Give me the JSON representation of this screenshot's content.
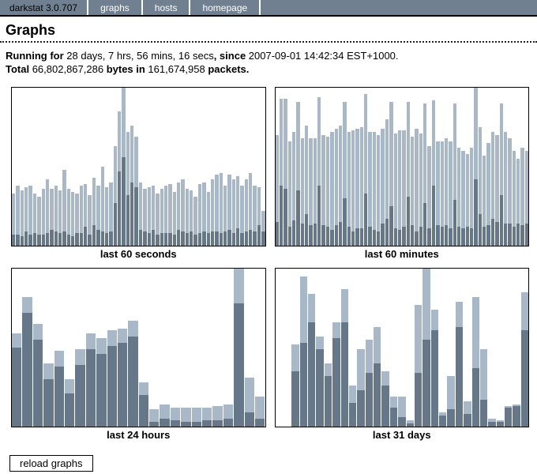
{
  "nav": {
    "items": [
      {
        "label": "darkstat 3.0.707"
      },
      {
        "label": "graphs"
      },
      {
        "label": "hosts"
      },
      {
        "label": "homepage"
      }
    ]
  },
  "page_title": "Graphs",
  "stats": {
    "running_label": "Running for",
    "uptime": " 28 days, 7 hrs, 56 mins, 16 secs",
    "since_label": ", since",
    "since_value": " 2007-09-01 14:42:34 EST+1000.",
    "total_label": "Total",
    "bytes_value": " 66,802,867,286 ",
    "bytes_label": "bytes in",
    "packets_value": " 161,674,958 ",
    "packets_label": "packets."
  },
  "colors": {
    "nav_background": "#708090",
    "bar_in_dark": "#66778a",
    "bar_out_light": "#a9b8c8",
    "graph_border": "#000000"
  },
  "footer": {
    "reload_button_label": "reload graphs"
  },
  "chart_data": [
    {
      "type": "bar",
      "stacked": true,
      "title": "last 60 seconds",
      "bins": 60,
      "ylim_pct": [
        0,
        100
      ],
      "note": "no axis labels shown; values are percent of graph height, dark=in bottom, light=out top",
      "series": [
        {
          "name": "in",
          "values": [
            7,
            7,
            6,
            9,
            7,
            8,
            7,
            7,
            8,
            10,
            9,
            8,
            9,
            7,
            6,
            8,
            8,
            12,
            7,
            13,
            10,
            9,
            8,
            9,
            27,
            47,
            56,
            32,
            40,
            37,
            10,
            9,
            8,
            10,
            7,
            8,
            8,
            8,
            7,
            10,
            9,
            8,
            9,
            7,
            8,
            9,
            8,
            9,
            9,
            8,
            9,
            10,
            8,
            11,
            8,
            9,
            10,
            9,
            13,
            9
          ]
        },
        {
          "name": "out",
          "values": [
            26,
            31,
            29,
            28,
            31,
            25,
            24,
            29,
            34,
            26,
            29,
            27,
            39,
            29,
            28,
            25,
            30,
            27,
            25,
            30,
            28,
            41,
            29,
            31,
            36,
            38,
            44,
            40,
            36,
            32,
            30,
            27,
            29,
            28,
            26,
            28,
            30,
            31,
            27,
            30,
            33,
            28,
            26,
            24,
            31,
            31,
            26,
            33,
            36,
            38,
            29,
            35,
            34,
            33,
            30,
            33,
            36,
            29,
            24,
            13
          ]
        }
      ]
    },
    {
      "type": "bar",
      "stacked": true,
      "title": "last 60 minutes",
      "bins": 60,
      "ylim_pct": [
        0,
        100
      ],
      "note": "no axis labels shown; values are percent of graph height, dark=in bottom, light=out top",
      "series": [
        {
          "name": "in",
          "values": [
            15,
            38,
            36,
            12,
            16,
            35,
            14,
            20,
            13,
            14,
            38,
            13,
            12,
            10,
            13,
            15,
            30,
            12,
            9,
            11,
            11,
            33,
            12,
            10,
            9,
            14,
            17,
            25,
            11,
            10,
            12,
            31,
            13,
            9,
            12,
            27,
            11,
            38,
            13,
            12,
            13,
            11,
            29,
            12,
            11,
            12,
            11,
            42,
            20,
            12,
            13,
            17,
            15,
            32,
            14,
            14,
            12,
            14,
            13,
            14
          ]
        },
        {
          "name": "out",
          "values": [
            55,
            55,
            57,
            54,
            56,
            56,
            54,
            56,
            55,
            54,
            56,
            57,
            57,
            62,
            61,
            61,
            61,
            60,
            64,
            63,
            64,
            63,
            60,
            62,
            61,
            60,
            63,
            66,
            60,
            63,
            61,
            60,
            56,
            65,
            59,
            63,
            52,
            54,
            53,
            54,
            55,
            55,
            61,
            50,
            49,
            46,
            51,
            58,
            55,
            45,
            52,
            55,
            55,
            58,
            58,
            54,
            48,
            41,
            49,
            46
          ]
        }
      ]
    },
    {
      "type": "bar",
      "stacked": true,
      "title": "last 24 hours",
      "bins": 24,
      "ylim_pct": [
        0,
        100
      ],
      "note": "no axis labels shown; values are percent of graph height, dark=in bottom, light=out top",
      "series": [
        {
          "name": "in",
          "values": [
            50,
            72,
            55,
            30,
            38,
            21,
            39,
            49,
            46,
            51,
            53,
            57,
            20,
            3,
            5,
            4,
            3,
            3,
            4,
            4,
            5,
            78,
            9,
            5
          ]
        },
        {
          "name": "out",
          "values": [
            9,
            10,
            10,
            10,
            10,
            9,
            10,
            10,
            10,
            10,
            9,
            10,
            8,
            8,
            9,
            8,
            9,
            9,
            8,
            9,
            9,
            22,
            22,
            14
          ]
        }
      ]
    },
    {
      "type": "bar",
      "stacked": true,
      "title": "last 31 days",
      "bins": 31,
      "ylim_pct": [
        0,
        100
      ],
      "note": "first two day slots empty; values are percent of graph height, dark=in bottom, light=out top",
      "series": [
        {
          "name": "in",
          "values": [
            0,
            0,
            35,
            53,
            66,
            49,
            32,
            56,
            66,
            15,
            23,
            34,
            40,
            26,
            12,
            6,
            2,
            34,
            55,
            61,
            7,
            11,
            63,
            8,
            37,
            17,
            3,
            3,
            12,
            13,
            61
          ]
        },
        {
          "name": "out",
          "values": [
            0,
            0,
            17,
            42,
            18,
            8,
            8,
            10,
            21,
            11,
            26,
            21,
            23,
            9,
            7,
            13,
            2,
            43,
            45,
            13,
            2,
            21,
            16,
            8,
            45,
            32,
            2,
            1,
            1,
            1,
            24
          ]
        }
      ]
    }
  ]
}
